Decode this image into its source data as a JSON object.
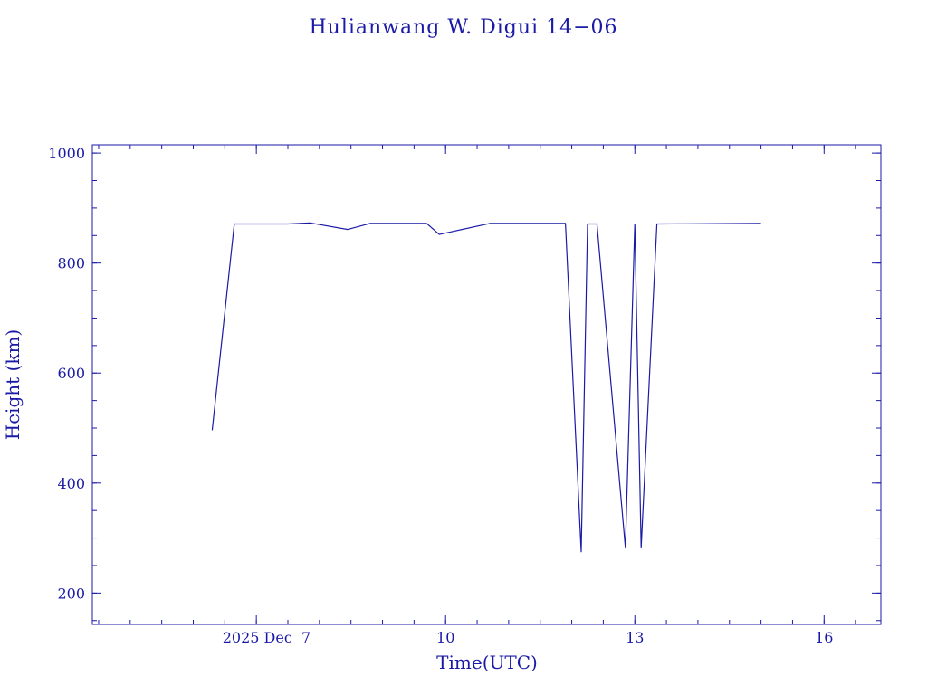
{
  "chart_data": {
    "type": "line",
    "title": "Hulianwang W. Digui 14−06",
    "xlabel": "Time(UTC)",
    "ylabel": "Height (km)",
    "x_unit": "day of December 2025 (UTC)",
    "xlim": [
      4.4,
      16.9
    ],
    "ylim": [
      143,
      1015
    ],
    "x_major_ticks": [
      {
        "value": 7,
        "label": "2025 Dec  7"
      },
      {
        "value": 10,
        "label": "10"
      },
      {
        "value": 13,
        "label": "13"
      },
      {
        "value": 16,
        "label": "16"
      }
    ],
    "x_minor_step": 0.5,
    "y_major_ticks": [
      200,
      400,
      600,
      800,
      1000
    ],
    "y_minor_step": 50,
    "grid": false,
    "legend": "none",
    "color": "#1a1aa6",
    "series": [
      {
        "x": [
          6.3,
          6.65,
          7.5,
          7.85,
          8.45,
          8.8,
          9.7,
          9.9,
          10.7,
          11.9,
          12.15,
          12.25,
          12.4,
          12.85,
          13.0,
          13.1,
          13.35,
          15.0
        ],
        "y": [
          496,
          871,
          871,
          873,
          861,
          872,
          872,
          852,
          872,
          872,
          275,
          871,
          871,
          282,
          871,
          282,
          871,
          872
        ]
      }
    ]
  }
}
